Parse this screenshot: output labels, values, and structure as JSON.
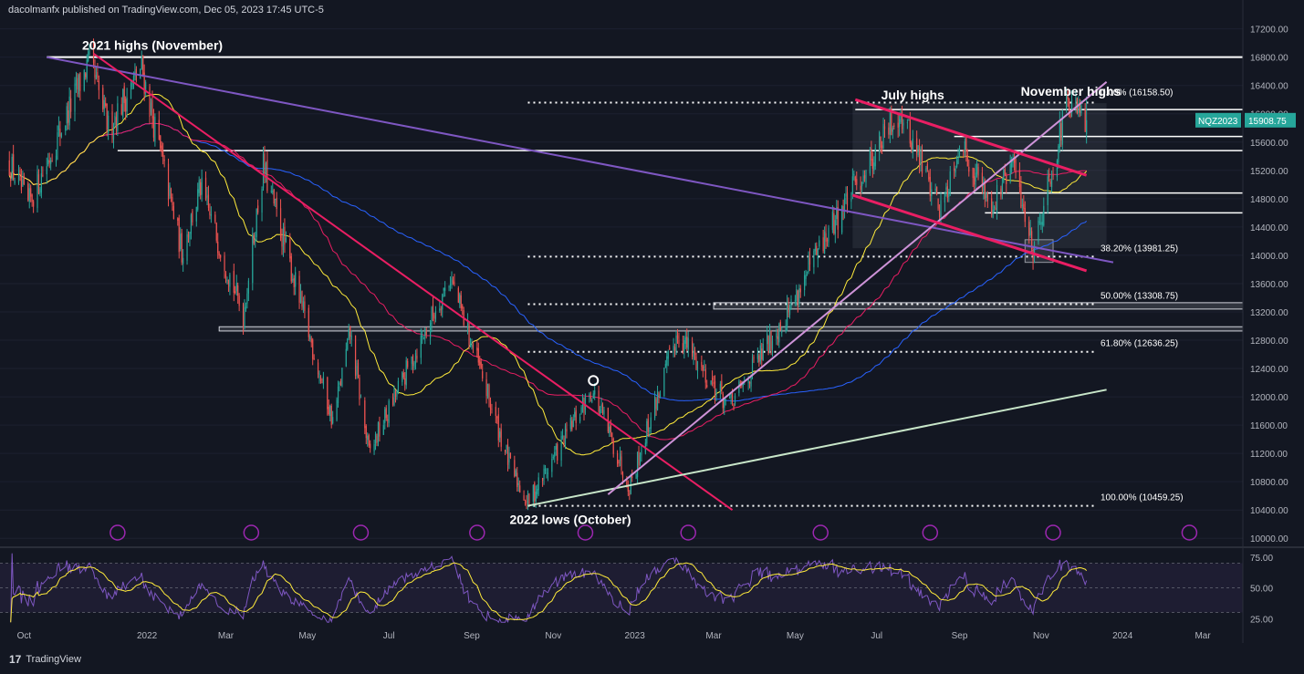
{
  "header": "dacolmanfx published on TradingView.com, Dec 05, 2023 17:45 UTC-5",
  "logo_text": "TradingView",
  "colors": {
    "background": "#131722",
    "bull": "#26a69a",
    "bear": "#ef5350",
    "trend_magenta": "#e91e63",
    "trend_purple": "#7e57c2",
    "trend_lilac": "#ce93d8",
    "trend_green": "#c8e6c9",
    "sma50": "#ffeb3b",
    "sma100": "#e91e63",
    "sma200": "#2962ff",
    "rsi": "#7e57c2",
    "rsi_ma": "#ffeb3b"
  },
  "chart_data": [
    {
      "type": "candlestick",
      "symbol": "NQZ2023",
      "last_price": "15908.75",
      "x_tick_labels": [
        "Oct",
        "2022",
        "Mar",
        "May",
        "Jul",
        "Sep",
        "Nov",
        "2023",
        "Mar",
        "May",
        "Jul",
        "Sep",
        "Nov",
        "2024",
        "Mar"
      ],
      "y_tick_labels": [
        "17200.00",
        "16800.00",
        "16400.00",
        "16000.00",
        "15600.00",
        "15200.00",
        "14800.00",
        "14400.00",
        "14000.00",
        "13600.00",
        "13200.00",
        "12800.00",
        "12400.00",
        "12000.00",
        "11600.00",
        "11200.00",
        "10800.00",
        "10400.00",
        "10000.00"
      ],
      "ylim": [
        9900,
        17350
      ],
      "price_path": [
        {
          "date": "2021-09-20",
          "value": 15300
        },
        {
          "date": "2021-10-04",
          "value": 14700
        },
        {
          "date": "2021-10-18",
          "value": 15300
        },
        {
          "date": "2021-11-19",
          "value": 16750
        },
        {
          "date": "2021-12-03",
          "value": 15800
        },
        {
          "date": "2021-12-28",
          "value": 16650
        },
        {
          "date": "2022-01-27",
          "value": 14050
        },
        {
          "date": "2022-02-10",
          "value": 14950
        },
        {
          "date": "2022-03-14",
          "value": 13150
        },
        {
          "date": "2022-03-29",
          "value": 15250
        },
        {
          "date": "2022-05-20",
          "value": 11650
        },
        {
          "date": "2022-06-02",
          "value": 12900
        },
        {
          "date": "2022-06-16",
          "value": 11200
        },
        {
          "date": "2022-08-16",
          "value": 13700
        },
        {
          "date": "2022-09-30",
          "value": 11000
        },
        {
          "date": "2022-10-13",
          "value": 10500
        },
        {
          "date": "2022-11-30",
          "value": 12100
        },
        {
          "date": "2022-12-28",
          "value": 10750
        },
        {
          "date": "2023-02-02",
          "value": 12900
        },
        {
          "date": "2023-03-13",
          "value": 11850
        },
        {
          "date": "2023-04-28",
          "value": 13300
        },
        {
          "date": "2023-05-31",
          "value": 14500
        },
        {
          "date": "2023-07-18",
          "value": 16050
        },
        {
          "date": "2023-08-18",
          "value": 14650
        },
        {
          "date": "2023-09-01",
          "value": 15600
        },
        {
          "date": "2023-09-26",
          "value": 14700
        },
        {
          "date": "2023-10-11",
          "value": 15300
        },
        {
          "date": "2023-10-26",
          "value": 14100
        },
        {
          "date": "2023-11-20",
          "value": 16100
        },
        {
          "date": "2023-12-05",
          "value": 15908.75
        }
      ],
      "annotations": [
        {
          "text": "2021 highs (November)",
          "date": "2021-11-19",
          "value": 16750
        },
        {
          "text": "July highs",
          "date": "2023-07-18",
          "value": 16050
        },
        {
          "text": "November highs",
          "date": "2023-11-20",
          "value": 16100
        },
        {
          "text": "2022 lows (October)",
          "date": "2022-10-13",
          "value": 10460
        }
      ],
      "fibonacci_levels": [
        {
          "ratio": "0.00%",
          "value": 16158.5,
          "label": "0.00% (16158.50)"
        },
        {
          "ratio": "38.20%",
          "value": 13981.25,
          "label": "38.20% (13981.25)"
        },
        {
          "ratio": "50.00%",
          "value": 13308.75,
          "label": "50.00% (13308.75)"
        },
        {
          "ratio": "61.80%",
          "value": 12636.25,
          "label": "61.80% (12636.25)"
        },
        {
          "ratio": "100.00%",
          "value": 10459.25,
          "label": "100.00% (10459.25)"
        }
      ],
      "horizontal_levels": [
        16800,
        16060,
        15680,
        15480,
        14880,
        14600
      ],
      "moving_averages": [
        "50-day SMA",
        "100-day SMA",
        "200-day SMA"
      ]
    },
    {
      "type": "line",
      "indicator": "RSI",
      "y_tick_labels": [
        "75.00",
        "50.00",
        "25.00"
      ],
      "ylim": [
        20,
        80
      ],
      "overbought": 70,
      "oversold": 30,
      "middle": 50
    }
  ]
}
